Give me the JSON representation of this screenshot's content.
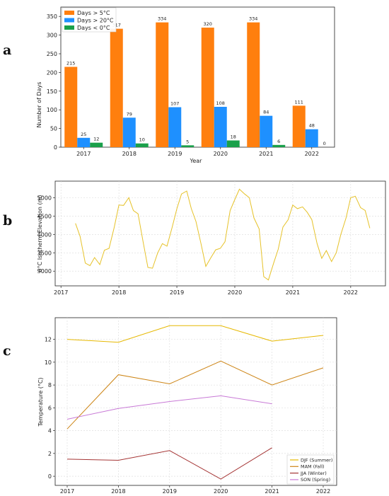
{
  "panels": {
    "a": "a",
    "b": "b",
    "c": "c"
  },
  "chart_data": [
    {
      "type": "bar",
      "categories": [
        "2017",
        "2018",
        "2019",
        "2020",
        "2021",
        "2022"
      ],
      "series": [
        {
          "name": "Days > 5°C",
          "color": "#ff7f0e",
          "values": [
            215,
            317,
            334,
            320,
            334,
            111
          ]
        },
        {
          "name": "Days > 20°C",
          "color": "#1e90ff",
          "values": [
            25,
            79,
            107,
            108,
            84,
            48
          ]
        },
        {
          "name": "Days < 0°C",
          "color": "#1aa04a",
          "values": [
            12,
            10,
            5,
            18,
            6,
            0
          ]
        }
      ],
      "xlabel": "Year",
      "ylabel": "Number of Days",
      "ylim": [
        0,
        375
      ],
      "yticks": [
        0,
        50,
        100,
        150,
        200,
        250,
        300,
        350
      ],
      "legend": "top-left",
      "grid": false
    },
    {
      "type": "line",
      "series": [
        {
          "name": "",
          "color": "#e6c229",
          "x": [
            2017.25,
            2017.33,
            2017.42,
            2017.5,
            2017.58,
            2017.67,
            2017.75,
            2017.83,
            2017.92,
            2018.0,
            2018.08,
            2018.17,
            2018.25,
            2018.33,
            2018.42,
            2018.5,
            2018.58,
            2018.67,
            2018.75,
            2018.83,
            2018.92,
            2019.0,
            2019.08,
            2019.17,
            2019.25,
            2019.33,
            2019.42,
            2019.5,
            2019.58,
            2019.67,
            2019.75,
            2019.83,
            2019.92,
            2020.0,
            2020.08,
            2020.17,
            2020.25,
            2020.33,
            2020.42,
            2020.5,
            2020.58,
            2020.67,
            2020.75,
            2020.83,
            2020.92,
            2021.0,
            2021.08,
            2021.17,
            2021.25,
            2021.33,
            2021.42,
            2021.5,
            2021.58,
            2021.67,
            2021.75,
            2021.83,
            2021.92,
            2022.0,
            2022.08,
            2022.17,
            2022.25,
            2022.33
          ],
          "y": [
            4300,
            3950,
            3220,
            3150,
            3370,
            3180,
            3570,
            3620,
            4200,
            4800,
            4790,
            5000,
            4650,
            4560,
            3780,
            3100,
            3080,
            3500,
            3750,
            3680,
            4200,
            4700,
            5100,
            5180,
            4700,
            4350,
            3720,
            3130,
            3350,
            3580,
            3620,
            3800,
            4650,
            4950,
            5230,
            5100,
            5000,
            4450,
            4150,
            2850,
            2760,
            3220,
            3600,
            4200,
            4400,
            4800,
            4700,
            4750,
            4600,
            4400,
            3750,
            3350,
            3560,
            3260,
            3500,
            4000,
            4450,
            5000,
            5040,
            4730,
            4650,
            4170
          ]
        }
      ],
      "xlabel": "",
      "ylabel": "0°C Isotherm Elevation (m)",
      "xlim": [
        2016.9,
        2022.6
      ],
      "ylim": [
        2600,
        5450
      ],
      "xticks": [
        "2017",
        "2018",
        "2019",
        "2020",
        "2021",
        "2022"
      ],
      "yticks": [
        3000,
        3500,
        4000,
        4500,
        5000
      ],
      "grid": true
    },
    {
      "type": "line",
      "categories": [
        "2017",
        "2018",
        "2019",
        "2020",
        "2021",
        "2022"
      ],
      "series": [
        {
          "name": "DJF (Summer)",
          "color": "#e6b800",
          "values": [
            12.0,
            11.75,
            13.2,
            13.2,
            11.85,
            12.35
          ]
        },
        {
          "name": "MAM (Fall)",
          "color": "#cd8516",
          "values": [
            4.15,
            8.9,
            8.1,
            10.1,
            8.0,
            9.5
          ]
        },
        {
          "name": "JJA (Winter)",
          "color": "#a53535",
          "values": [
            1.5,
            1.4,
            2.25,
            -0.25,
            2.5,
            null
          ]
        },
        {
          "name": "SON (Spring)",
          "color": "#c879d6",
          "values": [
            5.0,
            5.95,
            6.55,
            7.05,
            6.35,
            null
          ]
        }
      ],
      "legend_labels": [
        "DJF (Summer)",
        "MAM (Fall)",
        "JJA (Winter)",
        "SON (Spring)"
      ],
      "xlabel": "",
      "ylabel": "Temperature (°C)",
      "ylim": [
        -0.8,
        13.9
      ],
      "yticks": [
        0,
        2,
        4,
        6,
        8,
        10,
        12
      ],
      "legend": "bottom-right",
      "grid": true
    }
  ]
}
